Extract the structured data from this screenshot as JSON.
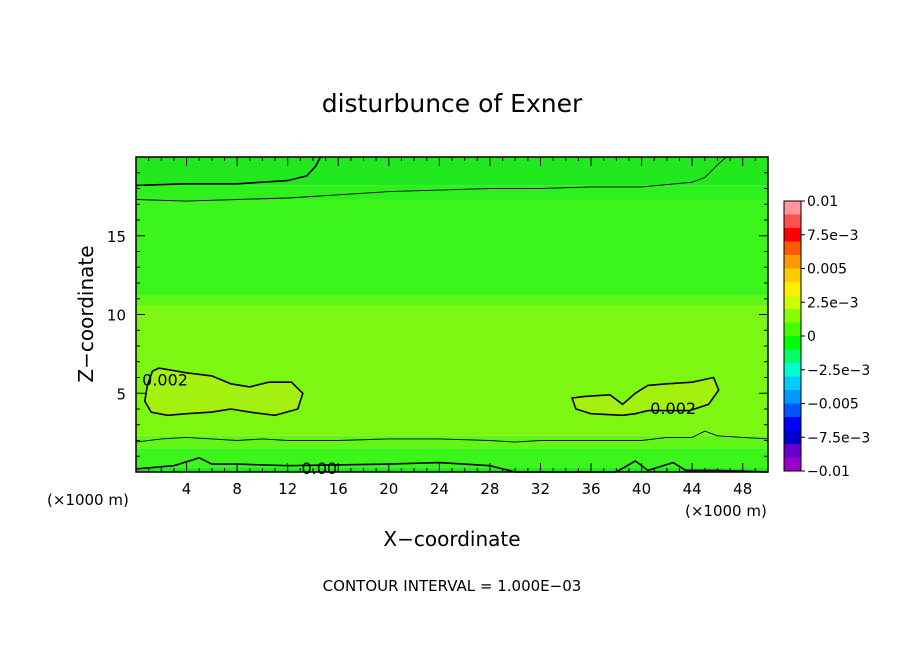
{
  "chart_data": {
    "type": "heatmap",
    "title": "disturbunce of Exner",
    "xlabel": "X−coordinate",
    "ylabel": "Z−coordinate",
    "x_unit": "(×1000 m)",
    "y_unit": "(×1000 m)",
    "xlim": [
      0,
      50
    ],
    "ylim": [
      0,
      20
    ],
    "x_ticks": [
      4,
      8,
      12,
      16,
      20,
      24,
      28,
      32,
      36,
      40,
      44,
      48
    ],
    "y_ticks": [
      5,
      10,
      15
    ],
    "footer": "CONTOUR INTERVAL = 1.000E−03",
    "colorbar": {
      "labels": [
        "0.01",
        "7.5e−3",
        "0.005",
        "2.5e−3",
        "0",
        "−2.5e−3",
        "−0.005",
        "−7.5e−3",
        "−0.01"
      ],
      "levels": [
        0.01,
        0.0075,
        0.005,
        0.0025,
        0,
        -0.0025,
        -0.005,
        -0.0075,
        -0.01
      ],
      "colors": [
        "#ff9999",
        "#ff5050",
        "#ff0000",
        "#ff5a00",
        "#ff9900",
        "#ffcc00",
        "#ffee00",
        "#ccff00",
        "#88ff00",
        "#44ff00",
        "#00ff00",
        "#00ff66",
        "#00ffcc",
        "#00ccff",
        "#0099ff",
        "#0055ff",
        "#0000ff",
        "#0000cc",
        "#6600cc",
        "#9900cc"
      ]
    },
    "bands": [
      {
        "z_min": 0,
        "z_max": 0.25,
        "value": 0.0,
        "color": "#1ee81e"
      },
      {
        "z_min": 0.25,
        "z_max": 1.5,
        "value": 0.0005,
        "color": "#3cf51a"
      },
      {
        "z_min": 1.5,
        "z_max": 2.3,
        "value": 0.0012,
        "color": "#5ef716"
      },
      {
        "z_min": 2.3,
        "z_max": 10.6,
        "value": 0.0019,
        "color": "#7cf712"
      },
      {
        "z_min": 10.6,
        "z_max": 11.2,
        "value": 0.0014,
        "color": "#5ef716"
      },
      {
        "z_min": 11.2,
        "z_max": 17.3,
        "value": 0.0008,
        "color": "#3cf51a"
      },
      {
        "z_min": 17.3,
        "z_max": 18.2,
        "value": 0.0003,
        "color": "#2ef01c"
      },
      {
        "z_min": 18.2,
        "z_max": 20,
        "value": 0.0,
        "color": "#22e81e"
      }
    ],
    "contour_labels": [
      {
        "text": "0.002",
        "x": 2.3,
        "z": 5.8
      },
      {
        "text": "0.002",
        "x": 42.5,
        "z": 4.0
      },
      {
        "text": "0.00",
        "x": 14.5,
        "z": 0.2
      }
    ],
    "contours": [
      {
        "level": 0.002,
        "points": [
          [
            1.3,
            6.4
          ],
          [
            1.8,
            6.6
          ],
          [
            4,
            6.3
          ],
          [
            6,
            6.1
          ],
          [
            7.5,
            5.6
          ],
          [
            9,
            5.4
          ],
          [
            10.5,
            5.7
          ],
          [
            12.3,
            5.7
          ],
          [
            13.2,
            5.0
          ],
          [
            12.8,
            4.0
          ],
          [
            11,
            3.6
          ],
          [
            9,
            3.8
          ],
          [
            7.5,
            4.0
          ],
          [
            6,
            3.8
          ],
          [
            4,
            3.7
          ],
          [
            2.5,
            3.6
          ],
          [
            1.2,
            3.8
          ],
          [
            0.7,
            4.5
          ],
          [
            0.9,
            5.5
          ],
          [
            1.3,
            6.4
          ]
        ]
      },
      {
        "level": 0.002,
        "points": [
          [
            34.5,
            4.7
          ],
          [
            35.5,
            4.8
          ],
          [
            37.5,
            4.9
          ],
          [
            38.5,
            4.3
          ],
          [
            39.5,
            5.0
          ],
          [
            40.5,
            5.5
          ],
          [
            42,
            5.6
          ],
          [
            44,
            5.7
          ],
          [
            45.7,
            6.0
          ],
          [
            46.1,
            5.2
          ],
          [
            45.3,
            4.3
          ],
          [
            43.8,
            3.9
          ],
          [
            42,
            3.9
          ],
          [
            40.5,
            3.9
          ],
          [
            39.5,
            3.7
          ],
          [
            38.5,
            3.6
          ],
          [
            36,
            3.7
          ],
          [
            34.8,
            4.0
          ],
          [
            34.5,
            4.7
          ]
        ]
      },
      {
        "level": 0.001,
        "points": [
          [
            0,
            1.9
          ],
          [
            2,
            2.1
          ],
          [
            4,
            2.2
          ],
          [
            6,
            2.1
          ],
          [
            8,
            2.0
          ],
          [
            10,
            2.1
          ],
          [
            12,
            2.0
          ],
          [
            16,
            2.0
          ],
          [
            20,
            2.1
          ],
          [
            24,
            2.1
          ],
          [
            28,
            2.0
          ],
          [
            30,
            1.9
          ],
          [
            32,
            2.0
          ],
          [
            36,
            2.0
          ],
          [
            40,
            2.0
          ],
          [
            42,
            2.2
          ],
          [
            44,
            2.2
          ],
          [
            45,
            2.6
          ],
          [
            46,
            2.3
          ],
          [
            48,
            2.2
          ],
          [
            50,
            2.1
          ]
        ]
      },
      {
        "level": 0.001,
        "points": [
          [
            0,
            17.3
          ],
          [
            4,
            17.2
          ],
          [
            8,
            17.3
          ],
          [
            12,
            17.4
          ],
          [
            16,
            17.6
          ],
          [
            20,
            17.8
          ],
          [
            24,
            17.9
          ],
          [
            28,
            18.0
          ],
          [
            32,
            18.0
          ],
          [
            36,
            18.1
          ],
          [
            40,
            18.1
          ],
          [
            44,
            18.4
          ],
          [
            45,
            18.7
          ],
          [
            46,
            19.5
          ],
          [
            46.7,
            20
          ]
        ]
      },
      {
        "level": 0.0,
        "points": [
          [
            0,
            18.2
          ],
          [
            4,
            18.3
          ],
          [
            8,
            18.3
          ],
          [
            12,
            18.5
          ],
          [
            13.5,
            18.8
          ],
          [
            14.2,
            19.4
          ],
          [
            14.6,
            20
          ]
        ]
      },
      {
        "level": 0.0,
        "points": [
          [
            0,
            0.2
          ],
          [
            3,
            0.4
          ],
          [
            5,
            0.9
          ],
          [
            6,
            0.5
          ],
          [
            8,
            0.5
          ],
          [
            12,
            0.4
          ],
          [
            20,
            0.5
          ],
          [
            24,
            0.6
          ],
          [
            28,
            0.4
          ],
          [
            30,
            0.0
          ],
          [
            38,
            0.0
          ],
          [
            39.5,
            0.7
          ],
          [
            40.5,
            0.1
          ],
          [
            42.5,
            0.6
          ],
          [
            43.5,
            0.1
          ],
          [
            46,
            0.1
          ],
          [
            50,
            0.0
          ]
        ]
      }
    ]
  }
}
